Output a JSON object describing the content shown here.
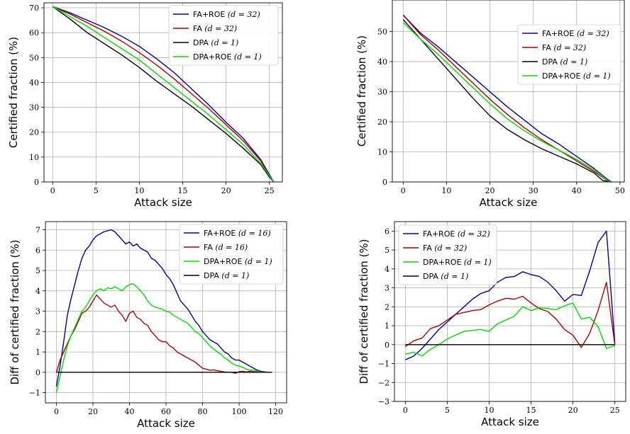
{
  "chart_data": [
    {
      "type": "line",
      "xlabel": "Attack size",
      "ylabel": "Certified fraction (%)",
      "xlim": [
        -1,
        26.5
      ],
      "ylim": [
        0,
        72
      ],
      "xticks": [
        0,
        5,
        10,
        15,
        20,
        25
      ],
      "yticks": [
        0,
        10,
        20,
        30,
        40,
        50,
        60,
        70
      ],
      "grid": true,
      "legend_position": "top-right",
      "series": [
        {
          "name": "FA+ROE",
          "param": "(d = 32)",
          "color": "#0000a0",
          "x": [
            0,
            2,
            4,
            6,
            8,
            10,
            12,
            14,
            16,
            18,
            20,
            22,
            24,
            25,
            25.5
          ],
          "y": [
            70.5,
            68,
            65,
            62,
            58.5,
            54.5,
            49.5,
            44,
            37.5,
            31,
            24,
            17.5,
            9,
            3,
            0
          ]
        },
        {
          "name": "FA",
          "param": "(d = 32)",
          "color": "#b00000",
          "x": [
            0,
            2,
            4,
            6,
            8,
            10,
            12,
            14,
            16,
            18,
            20,
            22,
            24,
            25,
            25.5
          ],
          "y": [
            70.5,
            67.5,
            64,
            60.5,
            56.5,
            52,
            47,
            41.5,
            35.5,
            29.5,
            23,
            16.5,
            8.5,
            2.5,
            0
          ]
        },
        {
          "name": "DPA",
          "param": "(d = 1)",
          "color": "#000000",
          "x": [
            0,
            2,
            4,
            6,
            8,
            10,
            12,
            14,
            16,
            18,
            20,
            22,
            24,
            25,
            25.5
          ],
          "y": [
            70.5,
            65.5,
            60,
            55.5,
            51,
            46,
            40.5,
            35.5,
            30.5,
            25,
            19.5,
            13.5,
            7,
            2,
            0
          ]
        },
        {
          "name": "DPA+ROE",
          "param": "(d = 1)",
          "color": "#00dd00",
          "x": [
            0,
            2,
            4,
            6,
            8,
            10,
            12,
            14,
            16,
            18,
            20,
            22,
            24,
            25,
            25.5
          ],
          "y": [
            70.5,
            66.5,
            62.5,
            58,
            53.5,
            49,
            43.5,
            38,
            32.5,
            27,
            21,
            15,
            7.5,
            2.5,
            0
          ]
        }
      ]
    },
    {
      "type": "line",
      "xlabel": "Attack size",
      "ylabel": "Certified fraction (%)",
      "xlim": [
        -2.5,
        51
      ],
      "ylim": [
        0,
        60.5
      ],
      "xticks": [
        0,
        10,
        20,
        30,
        40,
        50
      ],
      "yticks": [
        0,
        10,
        20,
        30,
        40,
        50
      ],
      "grid": true,
      "legend_position": "top-right",
      "series": [
        {
          "name": "FA+ROE",
          "param": "(d = 32)",
          "color": "#0000a0",
          "x": [
            0,
            4,
            8,
            12,
            16,
            20,
            24,
            28,
            32,
            36,
            40,
            44,
            47,
            48
          ],
          "y": [
            55.5,
            49.5,
            45,
            40,
            35,
            30,
            25,
            20.5,
            16,
            12.5,
            8.5,
            4.5,
            1,
            0
          ]
        },
        {
          "name": "FA",
          "param": "(d = 32)",
          "color": "#b00000",
          "x": [
            0,
            4,
            8,
            12,
            16,
            20,
            24,
            28,
            32,
            36,
            40,
            44,
            47,
            48
          ],
          "y": [
            55.5,
            49,
            44,
            38.5,
            33,
            27.5,
            22.5,
            18,
            14,
            10.5,
            7,
            3.5,
            0.5,
            0
          ]
        },
        {
          "name": "DPA",
          "param": "(d = 1)",
          "color": "#000000",
          "x": [
            0,
            4,
            8,
            12,
            16,
            20,
            24,
            28,
            32,
            36,
            40,
            44,
            46,
            48
          ],
          "y": [
            54,
            47.5,
            41,
            34.5,
            28,
            22,
            17.5,
            14,
            11,
            8.5,
            6,
            3,
            0.5,
            0
          ]
        },
        {
          "name": "DPA+ROE",
          "param": "(d = 1)",
          "color": "#00dd00",
          "x": [
            0,
            4,
            8,
            12,
            16,
            20,
            24,
            28,
            32,
            36,
            40,
            44,
            47,
            48
          ],
          "y": [
            53,
            47.5,
            42.5,
            37,
            31.5,
            26,
            21,
            17,
            13.5,
            10.5,
            7.5,
            4,
            0.5,
            0
          ]
        }
      ]
    },
    {
      "type": "line",
      "xlabel": "Attack size",
      "ylabel": "Diff of certified fraction (%)",
      "xlim": [
        -6,
        126
      ],
      "ylim": [
        -1.5,
        7.4
      ],
      "xticks": [
        0,
        20,
        40,
        60,
        80,
        100,
        120
      ],
      "yticks": [
        -1,
        0,
        1,
        2,
        3,
        4,
        5,
        6,
        7
      ],
      "grid": true,
      "legend_position": "top-right",
      "series": [
        {
          "name": "FA+ROE",
          "param": "(d = 16)",
          "color": "#0000a0",
          "x": [
            0,
            2,
            4,
            6,
            8,
            10,
            12,
            14,
            16,
            18,
            20,
            22,
            24,
            26,
            28,
            30,
            32,
            34,
            36,
            38,
            40,
            42,
            44,
            46,
            48,
            50,
            52,
            54,
            56,
            58,
            60,
            62,
            64,
            66,
            68,
            70,
            72,
            74,
            76,
            78,
            80,
            82,
            84,
            86,
            88,
            90,
            92,
            94,
            96,
            98,
            100,
            102,
            104,
            106,
            108,
            110,
            112,
            114,
            116,
            118
          ],
          "y": [
            -0.7,
            0.3,
            1.5,
            2.8,
            3.6,
            4.3,
            5.0,
            5.6,
            6.0,
            6.2,
            6.5,
            6.7,
            6.8,
            6.9,
            6.95,
            7.0,
            6.9,
            6.7,
            6.5,
            6.3,
            6.4,
            6.2,
            6.3,
            6.1,
            6.0,
            5.9,
            5.6,
            5.5,
            5.3,
            5.1,
            4.8,
            4.6,
            4.3,
            3.9,
            3.5,
            3.3,
            3.1,
            2.8,
            2.5,
            2.3,
            2.0,
            1.8,
            1.6,
            1.5,
            1.4,
            1.2,
            1.0,
            0.9,
            0.7,
            0.6,
            0.6,
            0.5,
            0.4,
            0.3,
            0.2,
            0.1,
            0.05,
            0.02,
            0.0,
            0.0
          ]
        },
        {
          "name": "FA",
          "param": "(d = 16)",
          "color": "#b00000",
          "x": [
            0,
            2,
            4,
            6,
            8,
            10,
            12,
            14,
            16,
            18,
            20,
            22,
            24,
            26,
            28,
            30,
            32,
            34,
            36,
            38,
            40,
            42,
            44,
            46,
            48,
            50,
            52,
            54,
            56,
            58,
            60,
            62,
            64,
            66,
            68,
            70,
            72,
            74,
            76,
            78,
            80,
            82,
            84,
            86,
            88,
            90,
            92,
            94,
            96,
            98,
            100,
            102,
            104,
            106,
            108,
            110,
            112,
            114,
            116,
            118
          ],
          "y": [
            0.0,
            0.6,
            1.0,
            1.4,
            1.8,
            2.1,
            2.5,
            2.9,
            3.0,
            3.2,
            3.5,
            3.8,
            3.6,
            3.4,
            3.3,
            3.2,
            3.3,
            3.0,
            2.8,
            2.5,
            2.9,
            3.0,
            2.7,
            2.6,
            2.4,
            2.3,
            2.0,
            1.8,
            1.6,
            1.5,
            1.5,
            1.3,
            1.2,
            1.0,
            0.9,
            0.8,
            0.7,
            0.6,
            0.5,
            0.35,
            0.2,
            0.15,
            0.1,
            0.12,
            0.08,
            0.05,
            0.02,
            0.0,
            0.0,
            -0.05,
            0.03,
            0.05,
            0.02,
            0.05,
            0.03,
            0.02,
            0.01,
            0.0,
            0.0,
            0.0
          ]
        },
        {
          "name": "DPA+ROE",
          "param": "(d = 1)",
          "color": "#00dd00",
          "x": [
            0,
            2,
            4,
            6,
            8,
            10,
            12,
            14,
            16,
            18,
            20,
            22,
            24,
            26,
            28,
            30,
            32,
            34,
            36,
            38,
            40,
            42,
            44,
            46,
            48,
            50,
            52,
            54,
            56,
            58,
            60,
            62,
            64,
            66,
            68,
            70,
            72,
            74,
            76,
            78,
            80,
            82,
            84,
            86,
            88,
            90,
            92,
            94,
            96,
            98,
            100,
            102,
            104,
            106,
            108,
            110,
            112,
            114,
            116,
            118
          ],
          "y": [
            -1.0,
            -0.2,
            0.6,
            1.3,
            1.8,
            2.2,
            2.6,
            3.0,
            3.2,
            3.5,
            3.8,
            4.0,
            4.1,
            4.0,
            4.15,
            4.1,
            4.2,
            4.1,
            4.0,
            4.2,
            4.3,
            4.35,
            4.2,
            4.0,
            3.8,
            3.5,
            3.3,
            3.2,
            3.15,
            3.1,
            3.0,
            2.95,
            2.8,
            2.7,
            2.6,
            2.5,
            2.4,
            2.2,
            2.0,
            1.9,
            1.7,
            1.5,
            1.3,
            1.15,
            1.0,
            0.9,
            0.7,
            0.6,
            0.45,
            0.35,
            0.3,
            0.25,
            0.15,
            0.1,
            0.1,
            0.05,
            0.02,
            0.0,
            0.0,
            0.0
          ]
        },
        {
          "name": "DPA",
          "param": "(d = 1)",
          "color": "#000000",
          "x": [
            0,
            118
          ],
          "y": [
            0,
            0
          ]
        }
      ]
    },
    {
      "type": "line",
      "xlabel": "Attack size",
      "ylabel": "Diff of certified fraction (%)",
      "xlim": [
        -1.3,
        26.3
      ],
      "ylim": [
        -3,
        6.5
      ],
      "xticks": [
        0,
        5,
        10,
        15,
        20,
        25
      ],
      "yticks": [
        -3,
        -2,
        -1,
        0,
        1,
        2,
        3,
        4,
        5,
        6
      ],
      "grid": true,
      "legend_position": "top-left",
      "series": [
        {
          "name": "FA+ROE",
          "param": "(d = 32)",
          "color": "#0000a0",
          "x": [
            0,
            1,
            2,
            3,
            4,
            5,
            6,
            7,
            8,
            9,
            10,
            11,
            12,
            13,
            14,
            15,
            16,
            17,
            18,
            19,
            20,
            21,
            22,
            23,
            24,
            25
          ],
          "y": [
            -0.8,
            -0.6,
            -0.2,
            0.3,
            0.8,
            1.2,
            1.6,
            2.0,
            2.4,
            2.7,
            2.85,
            3.3,
            3.55,
            3.6,
            3.85,
            3.7,
            3.6,
            3.3,
            2.85,
            2.3,
            2.65,
            2.6,
            3.9,
            5.4,
            6.0,
            0.05
          ]
        },
        {
          "name": "FA",
          "param": "(d = 32)",
          "color": "#b00000",
          "x": [
            0,
            1,
            2,
            3,
            4,
            5,
            6,
            7,
            8,
            9,
            10,
            11,
            12,
            13,
            14,
            15,
            16,
            17,
            18,
            19,
            20,
            21,
            22,
            23,
            24,
            25
          ],
          "y": [
            -0.1,
            0.2,
            0.35,
            0.85,
            1.0,
            1.3,
            1.6,
            1.7,
            1.8,
            1.85,
            2.1,
            2.3,
            2.45,
            2.4,
            2.55,
            2.2,
            1.9,
            1.75,
            1.35,
            0.8,
            0.5,
            -0.15,
            0.6,
            1.8,
            3.3,
            0.0
          ]
        },
        {
          "name": "DPA+ROE",
          "param": "(d = 1)",
          "color": "#00dd00",
          "x": [
            0,
            1,
            2,
            3,
            4,
            5,
            6,
            7,
            8,
            9,
            10,
            11,
            12,
            13,
            14,
            15,
            16,
            17,
            18,
            19,
            20,
            21,
            22,
            23,
            24,
            25
          ],
          "y": [
            -0.5,
            -0.4,
            -0.6,
            -0.25,
            0.0,
            0.3,
            0.5,
            0.7,
            0.75,
            0.8,
            0.7,
            1.1,
            1.3,
            1.5,
            2.0,
            1.8,
            1.95,
            1.9,
            1.85,
            2.05,
            2.2,
            1.35,
            1.45,
            0.95,
            -0.2,
            -0.05
          ]
        },
        {
          "name": "DPA",
          "param": "(d = 1)",
          "color": "#000000",
          "x": [
            0,
            25
          ],
          "y": [
            0,
            0
          ]
        }
      ]
    }
  ]
}
